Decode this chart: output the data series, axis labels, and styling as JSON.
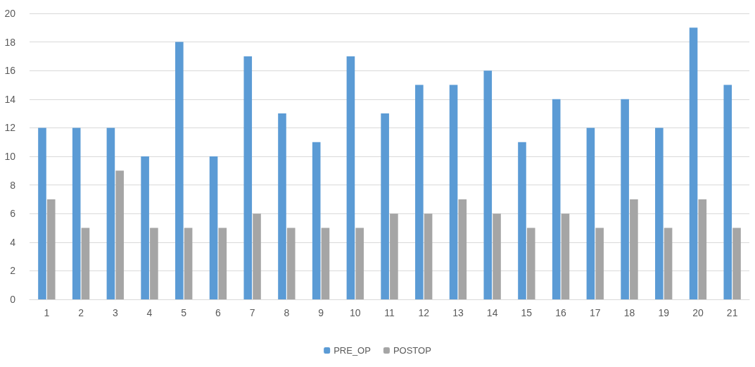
{
  "chart_data": {
    "type": "bar",
    "categories": [
      "1",
      "2",
      "3",
      "4",
      "5",
      "6",
      "7",
      "8",
      "9",
      "10",
      "11",
      "12",
      "13",
      "14",
      "15",
      "16",
      "17",
      "18",
      "19",
      "20",
      "21"
    ],
    "series": [
      {
        "name": "PRE_OP",
        "color": "#5b9bd5",
        "values": [
          12,
          12,
          12,
          10,
          18,
          10,
          17,
          13,
          11,
          17,
          13,
          15,
          15,
          16,
          11,
          14,
          12,
          14,
          12,
          19,
          15
        ]
      },
      {
        "name": "POSTOP",
        "color": "#a5a5a5",
        "values": [
          7,
          5,
          9,
          5,
          5,
          5,
          6,
          5,
          5,
          5,
          6,
          6,
          7,
          6,
          5,
          6,
          5,
          7,
          5,
          7,
          5
        ]
      }
    ],
    "ylim": [
      0,
      20
    ],
    "yticks": [
      0,
      2,
      4,
      6,
      8,
      10,
      12,
      14,
      16,
      18,
      20
    ],
    "grid": "y",
    "legend": "bottom"
  }
}
